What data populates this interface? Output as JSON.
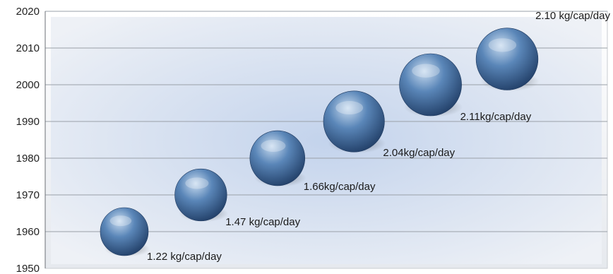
{
  "chart_data": {
    "type": "bubble",
    "title": "",
    "xlabel": "",
    "ylabel": "",
    "ylim": [
      1950,
      2020
    ],
    "yticks": [
      1950,
      1960,
      1970,
      1980,
      1990,
      2000,
      2010,
      2020
    ],
    "grid": true,
    "legend": "none",
    "points": [
      {
        "year": 1960,
        "value": 1.22,
        "label": "1.22 kg/cap/day"
      },
      {
        "year": 1970,
        "value": 1.47,
        "label": "1.47 kg/cap/day"
      },
      {
        "year": 1980,
        "value": 1.66,
        "label": "1.66kg/cap/day"
      },
      {
        "year": 1990,
        "value": 2.04,
        "label": "2.04kg/cap/day"
      },
      {
        "year": 2000,
        "value": 2.11,
        "label": "2.11kg/cap/day"
      },
      {
        "year": 2007,
        "value": 2.1,
        "label": "2.10 kg/cap/day"
      }
    ],
    "colors": {
      "bubble_light": "#c9dcf0",
      "bubble_mid": "#5a86b8",
      "bubble_dark": "#24426b",
      "plot_bg_edge": "#eef1f6",
      "plot_bg_center": "#c3d3ec"
    }
  }
}
